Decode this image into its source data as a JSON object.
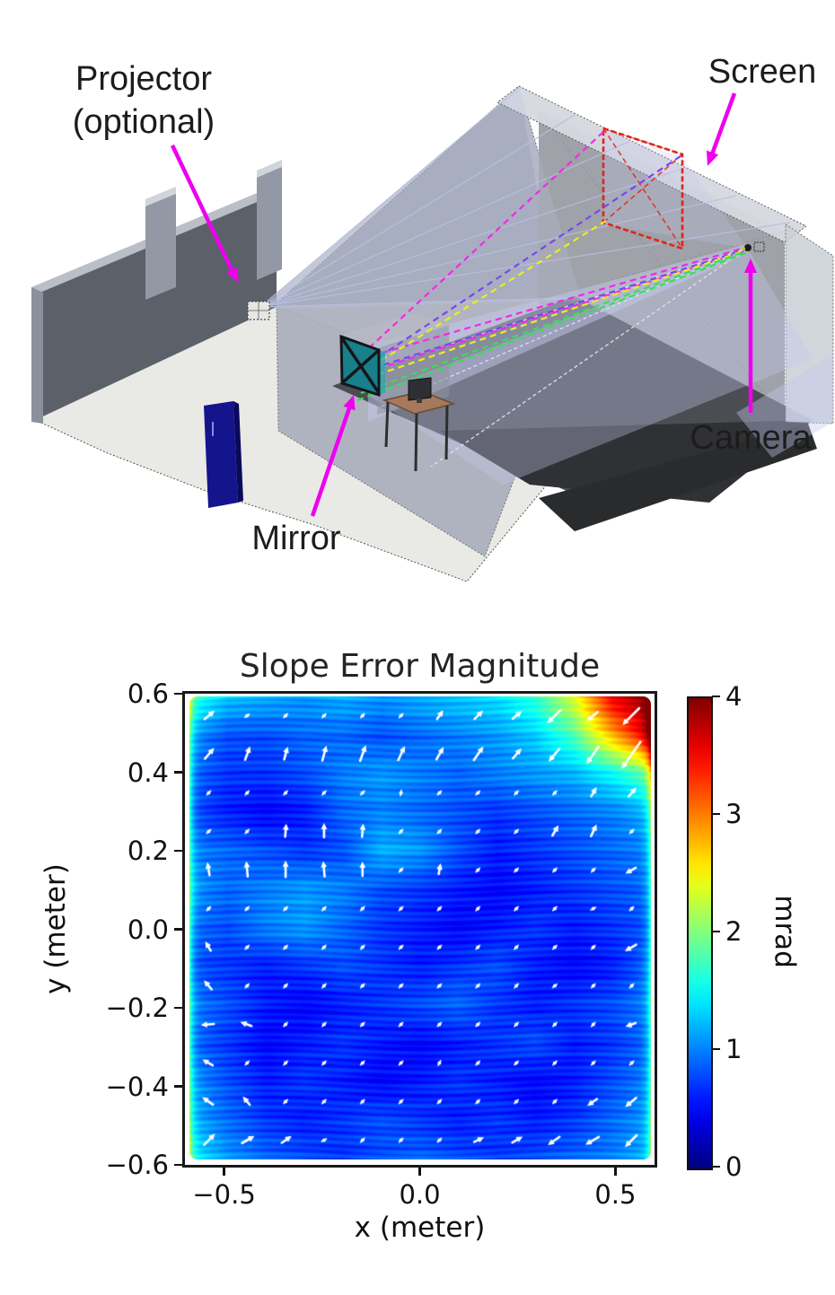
{
  "figure3d": {
    "labels": {
      "projector_line1": "Projector",
      "projector_line2": "(optional)",
      "screen": "Screen",
      "camera": "Camera",
      "mirror": "Mirror"
    },
    "annotation_color": "#ee00ee",
    "colors": {
      "wall": "#5c6068",
      "wall_top": "#b9bec8",
      "pillar": "#9298a4",
      "floor": "#e9e9e6",
      "door": "#14148c",
      "mirror": "#17808a",
      "screen_outline": "#e02418",
      "enclosure_face": "#a9aebb",
      "enclosure_top": "#d6d9e0",
      "interior_wall": "#9fa2a8",
      "dark_floor": "#4b4d52",
      "darker_floor": "#303134",
      "light_cone": "#c3c9ee",
      "ray_magenta": "#f428e8",
      "ray_violet": "#7b45f0",
      "ray_yellow": "#ecec20",
      "ray_green": "#35e055",
      "table_top": "#a5795b"
    }
  },
  "chart_data": {
    "type": "heatmap",
    "title": "Slope Error Magnitude",
    "xlabel": "x (meter)",
    "ylabel": "y (meter)",
    "colorbar_label": "mrad",
    "xlim": [
      -0.6,
      0.6
    ],
    "ylim": [
      -0.6,
      0.6
    ],
    "clim": [
      0,
      4
    ],
    "colormap": "jet",
    "xticks": [
      -0.5,
      0.0,
      0.5
    ],
    "xtick_labels": [
      "−0.5",
      "0.0",
      "0.5"
    ],
    "yticks": [
      0.6,
      0.4,
      0.2,
      0.0,
      -0.2,
      -0.4,
      -0.6
    ],
    "ytick_labels": [
      "0.6",
      "0.4",
      "0.2",
      "0.0",
      "−0.2",
      "−0.4",
      "−0.6"
    ],
    "colorbar_ticks": [
      0,
      1,
      2,
      3,
      4
    ],
    "colorbar_tick_labels": [
      "0",
      "1",
      "2",
      "3",
      "4"
    ],
    "grid_x": [
      -0.6,
      -0.5,
      -0.4,
      -0.3,
      -0.2,
      -0.1,
      0.0,
      0.1,
      0.2,
      0.3,
      0.4,
      0.5,
      0.6
    ],
    "grid_y": [
      0.6,
      0.5,
      0.4,
      0.3,
      0.2,
      0.1,
      0.0,
      -0.1,
      -0.2,
      -0.3,
      -0.4,
      -0.5,
      -0.6
    ],
    "values_mrad": [
      [
        1.7,
        1.3,
        1.2,
        1.1,
        1.2,
        1.1,
        1.2,
        1.3,
        1.4,
        1.7,
        2.4,
        3.6,
        4.0
      ],
      [
        1.1,
        0.8,
        0.8,
        0.9,
        0.9,
        0.8,
        0.9,
        1.0,
        1.1,
        1.3,
        1.8,
        2.8,
        3.7
      ],
      [
        0.9,
        0.7,
        0.7,
        0.8,
        1.0,
        1.1,
        1.0,
        0.9,
        1.0,
        1.1,
        1.2,
        1.5,
        1.9
      ],
      [
        0.8,
        0.6,
        0.5,
        0.6,
        0.9,
        1.0,
        0.9,
        0.8,
        0.7,
        0.8,
        0.9,
        1.0,
        1.2
      ],
      [
        1.0,
        0.9,
        0.8,
        0.7,
        0.8,
        1.2,
        1.1,
        0.8,
        0.6,
        0.7,
        0.8,
        0.9,
        1.0
      ],
      [
        1.1,
        0.9,
        1.0,
        1.1,
        1.0,
        0.8,
        0.7,
        0.6,
        0.5,
        0.6,
        0.7,
        0.8,
        0.9
      ],
      [
        0.9,
        0.8,
        1.0,
        1.1,
        0.9,
        0.7,
        0.6,
        0.5,
        0.6,
        0.7,
        0.6,
        0.7,
        0.8
      ],
      [
        0.8,
        0.7,
        0.6,
        0.7,
        0.8,
        0.7,
        0.6,
        0.7,
        0.8,
        0.6,
        0.5,
        0.6,
        0.9
      ],
      [
        1.0,
        0.8,
        0.6,
        0.5,
        0.6,
        0.7,
        0.8,
        0.9,
        0.7,
        0.6,
        0.7,
        0.8,
        1.0
      ],
      [
        0.9,
        0.7,
        0.5,
        0.6,
        0.7,
        0.6,
        0.5,
        0.6,
        0.7,
        0.8,
        0.6,
        0.7,
        0.9
      ],
      [
        1.1,
        0.8,
        0.6,
        0.7,
        0.6,
        0.5,
        0.6,
        0.7,
        0.6,
        0.5,
        0.6,
        0.8,
        1.0
      ],
      [
        1.2,
        0.9,
        0.7,
        0.6,
        0.7,
        0.8,
        0.7,
        0.6,
        0.7,
        0.6,
        0.7,
        0.9,
        1.1
      ],
      [
        1.5,
        1.1,
        0.9,
        0.8,
        0.7,
        0.8,
        0.9,
        0.8,
        0.7,
        0.8,
        0.9,
        1.0,
        1.2
      ]
    ],
    "quiver": {
      "grid_x": [
        -0.55,
        -0.45,
        -0.35,
        -0.25,
        -0.15,
        -0.05,
        0.05,
        0.15,
        0.25,
        0.35,
        0.45,
        0.55
      ],
      "grid_y": [
        0.55,
        0.45,
        0.35,
        0.25,
        0.15,
        0.05,
        -0.05,
        -0.15,
        -0.25,
        -0.35,
        -0.45,
        -0.55
      ],
      "default_length": 0.18,
      "arrows": [
        [
          -0.55,
          0.55,
          40,
          0.45
        ],
        [
          -0.45,
          0.55,
          35,
          0.3
        ],
        [
          -0.15,
          0.55,
          45,
          0.3
        ],
        [
          0.05,
          0.55,
          55,
          0.35
        ],
        [
          0.15,
          0.55,
          45,
          0.4
        ],
        [
          0.25,
          0.55,
          40,
          0.4
        ],
        [
          0.35,
          0.55,
          225,
          0.7
        ],
        [
          0.45,
          0.55,
          220,
          0.5
        ],
        [
          0.55,
          0.55,
          225,
          0.9
        ],
        [
          -0.55,
          0.45,
          50,
          0.5
        ],
        [
          -0.45,
          0.45,
          70,
          0.5
        ],
        [
          -0.35,
          0.45,
          75,
          0.45
        ],
        [
          -0.25,
          0.45,
          75,
          0.55
        ],
        [
          -0.15,
          0.45,
          70,
          0.6
        ],
        [
          -0.05,
          0.45,
          65,
          0.55
        ],
        [
          0.05,
          0.45,
          60,
          0.5
        ],
        [
          0.15,
          0.45,
          55,
          0.6
        ],
        [
          0.25,
          0.45,
          50,
          0.45
        ],
        [
          0.35,
          0.45,
          230,
          0.6
        ],
        [
          0.45,
          0.45,
          235,
          0.8
        ],
        [
          0.55,
          0.45,
          235,
          1.3
        ],
        [
          -0.05,
          0.35,
          80,
          0.3
        ],
        [
          0.45,
          0.35,
          60,
          0.35
        ],
        [
          0.55,
          0.35,
          50,
          0.4
        ],
        [
          -0.35,
          0.25,
          85,
          0.45
        ],
        [
          -0.25,
          0.25,
          90,
          0.5
        ],
        [
          -0.15,
          0.25,
          85,
          0.45
        ],
        [
          0.35,
          0.25,
          60,
          0.4
        ],
        [
          0.45,
          0.25,
          65,
          0.45
        ],
        [
          -0.55,
          0.15,
          100,
          0.45
        ],
        [
          -0.45,
          0.15,
          95,
          0.55
        ],
        [
          -0.35,
          0.15,
          90,
          0.6
        ],
        [
          -0.25,
          0.15,
          95,
          0.55
        ],
        [
          -0.15,
          0.15,
          90,
          0.5
        ],
        [
          0.05,
          0.15,
          80,
          0.35
        ],
        [
          0.55,
          0.15,
          210,
          0.4
        ],
        [
          0.45,
          0.05,
          30,
          0.3
        ],
        [
          -0.55,
          -0.05,
          120,
          0.35
        ],
        [
          0.55,
          -0.05,
          210,
          0.45
        ],
        [
          -0.55,
          -0.15,
          130,
          0.4
        ],
        [
          0.35,
          -0.15,
          220,
          0.3
        ],
        [
          -0.55,
          -0.25,
          185,
          0.45
        ],
        [
          -0.45,
          -0.25,
          160,
          0.4
        ],
        [
          0.55,
          -0.25,
          200,
          0.35
        ],
        [
          -0.55,
          -0.35,
          150,
          0.4
        ],
        [
          0.05,
          -0.35,
          60,
          0.3
        ],
        [
          -0.55,
          -0.45,
          145,
          0.45
        ],
        [
          -0.45,
          -0.45,
          130,
          0.35
        ],
        [
          0.45,
          -0.45,
          215,
          0.4
        ],
        [
          0.55,
          -0.45,
          220,
          0.5
        ],
        [
          -0.55,
          -0.55,
          45,
          0.55
        ],
        [
          -0.45,
          -0.55,
          30,
          0.5
        ],
        [
          -0.35,
          -0.55,
          35,
          0.4
        ],
        [
          -0.25,
          -0.55,
          30,
          0.3
        ],
        [
          0.15,
          -0.55,
          25,
          0.35
        ],
        [
          0.25,
          -0.55,
          30,
          0.4
        ],
        [
          0.35,
          -0.55,
          215,
          0.5
        ],
        [
          0.45,
          -0.55,
          210,
          0.55
        ],
        [
          0.55,
          -0.55,
          225,
          0.6
        ]
      ]
    }
  }
}
